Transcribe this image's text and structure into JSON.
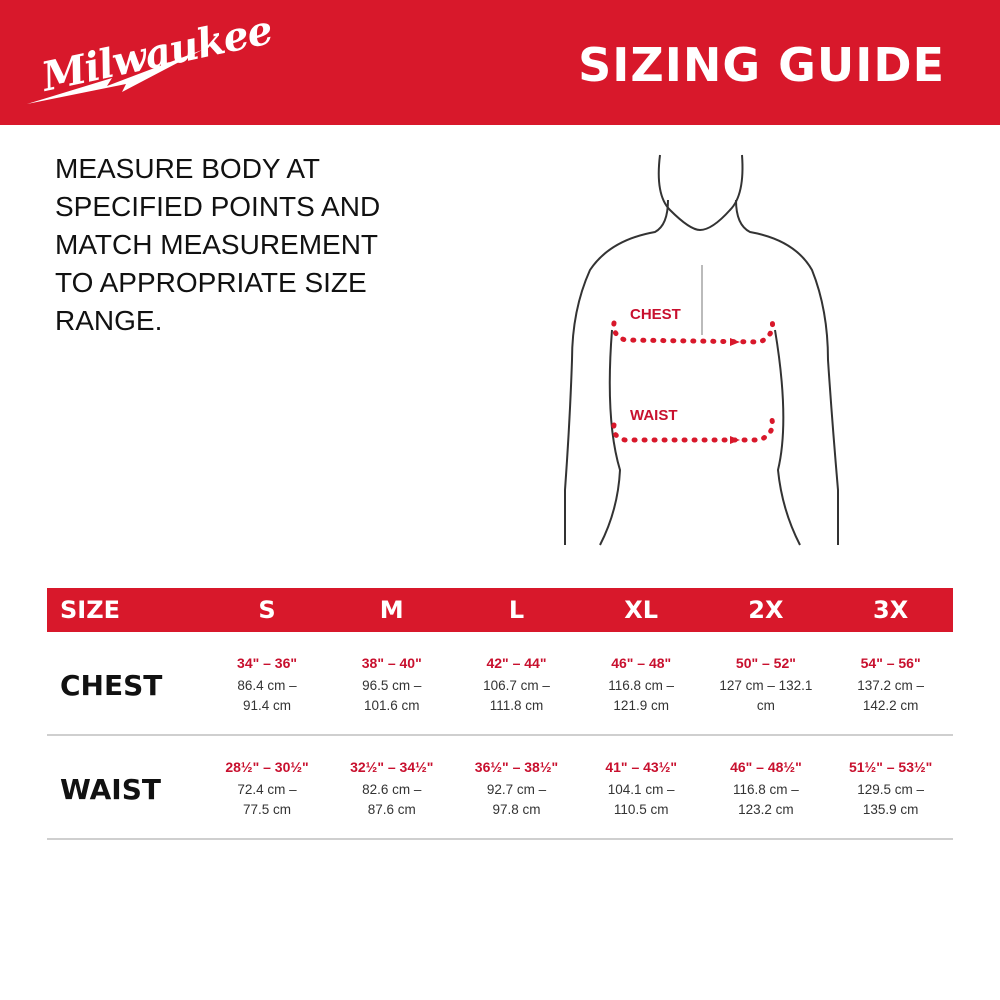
{
  "brand": {
    "logo_text": "Milwaukee",
    "color": "#d8182b"
  },
  "header": {
    "title": "SIZING GUIDE"
  },
  "instructions": "MEASURE BODY AT SPECIFIED POINTS AND MATCH MEASUREMENT TO APPROPRIATE SIZE RANGE.",
  "figure": {
    "chest_label": "CHEST",
    "waist_label": "WAIST"
  },
  "table": {
    "header": [
      "SIZE",
      "S",
      "M",
      "L",
      "XL",
      "2X",
      "3X"
    ],
    "rows": [
      {
        "label": "CHEST",
        "cells": [
          {
            "in": "34\" – 36\"",
            "cm": "86.4 cm –\n91.4 cm"
          },
          {
            "in": "38\" – 40\"",
            "cm": "96.5 cm –\n101.6 cm"
          },
          {
            "in": "42\" – 44\"",
            "cm": "106.7 cm –\n111.8 cm"
          },
          {
            "in": "46\" – 48\"",
            "cm": "116.8 cm –\n121.9 cm"
          },
          {
            "in": "50\" – 52\"",
            "cm": "127 cm –  132.1\ncm"
          },
          {
            "in": "54\" – 56\"",
            "cm": "137.2 cm –\n142.2 cm"
          }
        ]
      },
      {
        "label": "WAIST",
        "cells": [
          {
            "in": "28½\" – 30½\"",
            "cm": "72.4 cm –\n77.5 cm"
          },
          {
            "in": "32½\" – 34½\"",
            "cm": "82.6 cm –\n87.6 cm"
          },
          {
            "in": "36½\" – 38½\"",
            "cm": "92.7 cm –\n97.8 cm"
          },
          {
            "in": "41\" – 43½\"",
            "cm": "104.1 cm –\n110.5 cm"
          },
          {
            "in": "46\" – 48½\"",
            "cm": "116.8 cm –\n123.2 cm"
          },
          {
            "in": "51½\" – 53½\"",
            "cm": "129.5 cm –\n135.9 cm"
          }
        ]
      }
    ]
  }
}
